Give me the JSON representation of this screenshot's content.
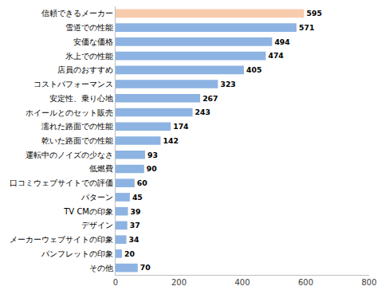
{
  "chart_data": {
    "type": "bar",
    "orientation": "horizontal",
    "categories": [
      "信頼できるメーカー",
      "雪道での性能",
      "安価な価格",
      "氷上での性能",
      "店員のおすすめ",
      "コストパフォーマンス",
      "安定性、乗り心地",
      "ホイールとのセット販売",
      "濡れた路面での性能",
      "乾いた路面での性能",
      "運転中のノイズの少なさ",
      "低燃費",
      "口コミウェブサイトでの評価",
      "パターン",
      "TV CMの印象",
      "デザイン",
      "メーカーウェブサイトの印象",
      "パンフレットの印象",
      "その他"
    ],
    "values": [
      595,
      571,
      494,
      474,
      405,
      323,
      267,
      243,
      174,
      142,
      93,
      90,
      60,
      45,
      39,
      37,
      34,
      20,
      70
    ],
    "colors": [
      "#f8cbad",
      "#8db3e2",
      "#8db3e2",
      "#8db3e2",
      "#8db3e2",
      "#8db3e2",
      "#8db3e2",
      "#8db3e2",
      "#8db3e2",
      "#8db3e2",
      "#8db3e2",
      "#8db3e2",
      "#8db3e2",
      "#8db3e2",
      "#8db3e2",
      "#8db3e2",
      "#8db3e2",
      "#8db3e2",
      "#8db3e2"
    ],
    "xlim": [
      0,
      800
    ],
    "xticks": [
      0,
      200,
      400,
      600,
      800
    ],
    "grid": false,
    "data_labels": true
  }
}
